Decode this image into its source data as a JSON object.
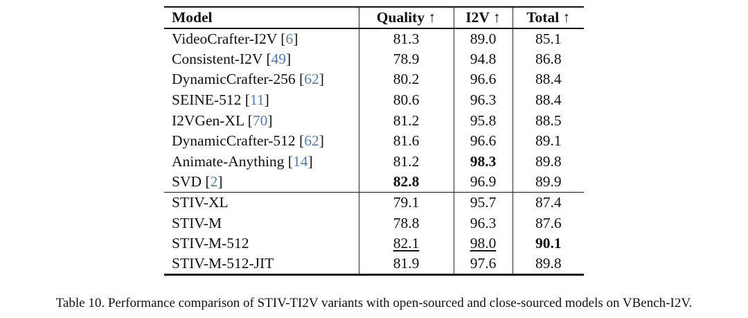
{
  "colors": {
    "citation_link": "#4a7ebb",
    "text": "#111111",
    "rule": "#141414"
  },
  "caption": "Table 10. Performance comparison of STIV-TI2V variants with open-sourced and close-sourced models on VBench-I2V.",
  "table": {
    "columns": [
      {
        "key": "model",
        "label": "Model"
      },
      {
        "key": "quality",
        "label": "Quality ↑"
      },
      {
        "key": "i2v",
        "label": "I2V ↑"
      },
      {
        "key": "total",
        "label": "Total ↑"
      }
    ],
    "rows": [
      {
        "model": "VideoCrafter-I2V",
        "cite": "6",
        "quality": "81.3",
        "i2v": "89.0",
        "total": "85.1"
      },
      {
        "model": "Consistent-I2V",
        "cite": "49",
        "quality": "78.9",
        "i2v": "94.8",
        "total": "86.8"
      },
      {
        "model": "DynamicCrafter-256",
        "cite": "62",
        "quality": "80.2",
        "i2v": "96.6",
        "total": "88.4"
      },
      {
        "model": "SEINE-512",
        "cite": "11",
        "quality": "80.6",
        "i2v": "96.3",
        "total": "88.4"
      },
      {
        "model": "I2VGen-XL",
        "cite": "70",
        "quality": "81.2",
        "i2v": "95.8",
        "total": "88.5"
      },
      {
        "model": "DynamicCrafter-512",
        "cite": "62",
        "quality": "81.6",
        "i2v": "96.6",
        "total": "89.1"
      },
      {
        "model": "Animate-Anything",
        "cite": "14",
        "quality": "81.2",
        "i2v": "98.3",
        "total": "89.8",
        "i2v_style": "bold"
      },
      {
        "model": "SVD",
        "cite": "2",
        "quality": "82.8",
        "i2v": "96.9",
        "total": "89.9",
        "quality_style": "bold"
      },
      {
        "model": "STIV-XL",
        "quality": "79.1",
        "i2v": "95.7",
        "total": "87.4",
        "group_start": true
      },
      {
        "model": "STIV-M",
        "quality": "78.8",
        "i2v": "96.3",
        "total": "87.6"
      },
      {
        "model": "STIV-M-512",
        "quality": "82.1",
        "i2v": "98.0",
        "total": "90.1",
        "quality_style": "underline",
        "i2v_style": "underline",
        "total_style": "bold"
      },
      {
        "model": "STIV-M-512-JIT",
        "quality": "81.9",
        "i2v": "97.6",
        "total": "89.8"
      }
    ]
  }
}
